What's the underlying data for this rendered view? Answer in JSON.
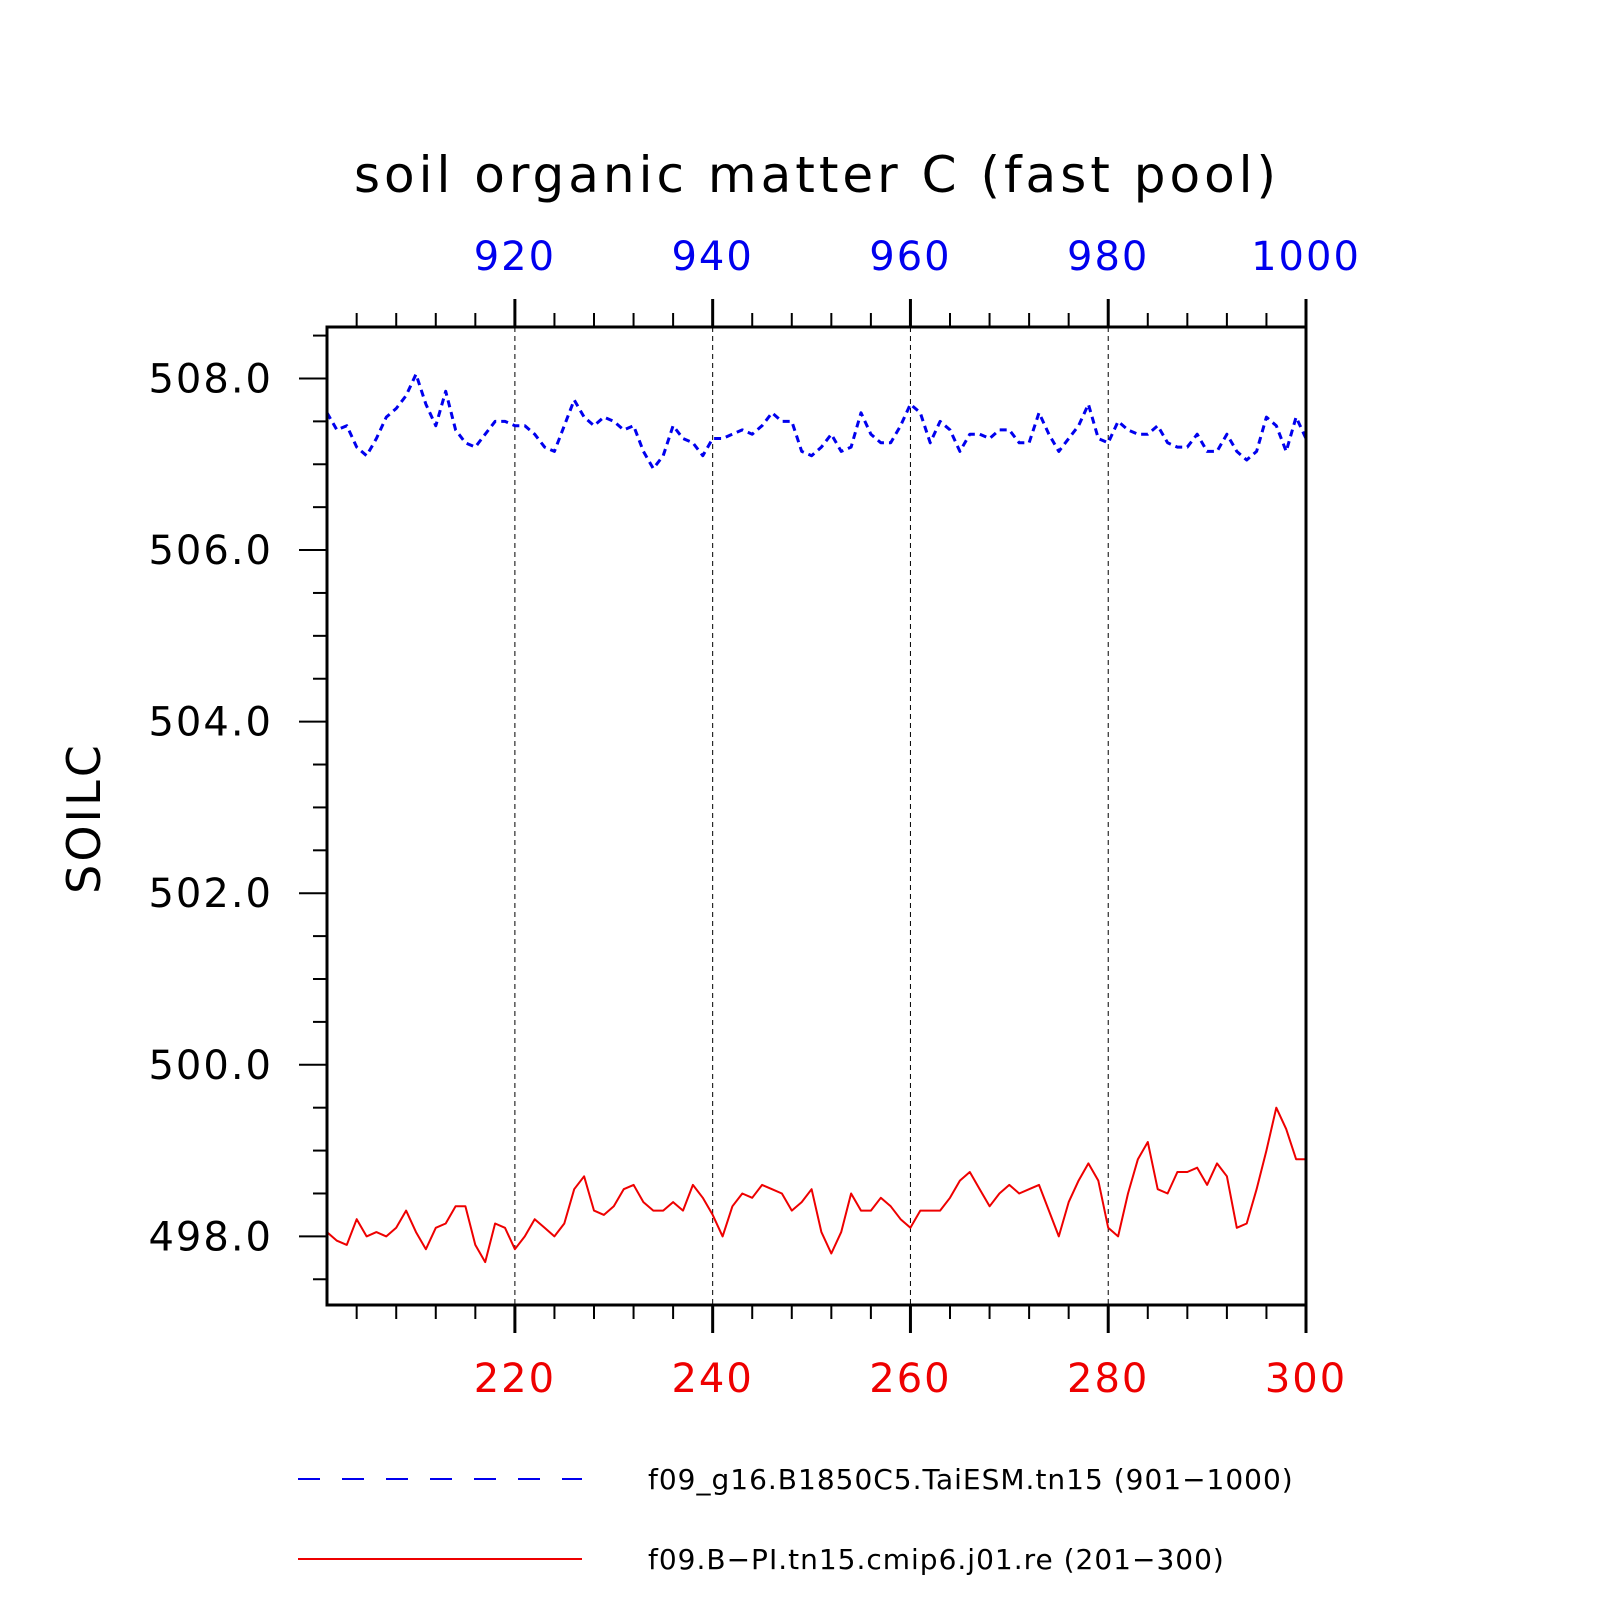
{
  "chart_data": {
    "type": "line",
    "title": "soil organic matter C (fast pool)",
    "ylabel": "SOILC",
    "xlabel": "",
    "ylim": [
      497.2,
      508.6
    ],
    "yticks": [
      498.0,
      500.0,
      502.0,
      504.0,
      506.0,
      508.0
    ],
    "ytick_labels": [
      "498.0",
      "500.0",
      "502.0",
      "504.0",
      "506.0",
      "508.0"
    ],
    "ytick_minor_step": 0.5,
    "grid": "vertical dashed at major x ticks",
    "legend_position": "bottom",
    "x_top": {
      "range": [
        901,
        1000
      ],
      "ticks": [
        920,
        940,
        960,
        980,
        1000
      ],
      "tick_labels": [
        "920",
        "940",
        "960",
        "980",
        "1000"
      ],
      "color": "#0000ee"
    },
    "x_bottom": {
      "range": [
        201,
        300
      ],
      "ticks": [
        220,
        240,
        260,
        280,
        300
      ],
      "tick_labels": [
        "220",
        "240",
        "260",
        "280",
        "300"
      ],
      "color": "#ee0000"
    },
    "series": [
      {
        "name": "f09_g16.B1850C5.TaiESM.tn15 (901−1000)",
        "axis": "top",
        "color": "#0000ee",
        "style": "dashed",
        "x_start": 901,
        "values": [
          507.6,
          507.4,
          507.45,
          507.2,
          507.1,
          507.3,
          507.55,
          507.65,
          507.8,
          508.05,
          507.7,
          507.45,
          507.85,
          507.4,
          507.25,
          507.2,
          507.35,
          507.5,
          507.5,
          507.45,
          507.45,
          507.35,
          507.2,
          507.15,
          507.45,
          507.75,
          507.55,
          507.45,
          507.55,
          507.5,
          507.4,
          507.45,
          507.15,
          506.95,
          507.1,
          507.45,
          507.3,
          507.25,
          507.1,
          507.3,
          507.3,
          507.35,
          507.4,
          507.35,
          507.45,
          507.6,
          507.5,
          507.5,
          507.15,
          507.1,
          507.2,
          507.35,
          507.15,
          507.2,
          507.6,
          507.35,
          507.25,
          507.25,
          507.45,
          507.7,
          507.6,
          507.25,
          507.5,
          507.4,
          507.15,
          507.35,
          507.35,
          507.3,
          507.4,
          507.4,
          507.25,
          507.25,
          507.6,
          507.35,
          507.15,
          507.3,
          507.45,
          507.7,
          507.3,
          507.25,
          507.5,
          507.4,
          507.35,
          507.35,
          507.45,
          507.25,
          507.2,
          507.2,
          507.35,
          507.15,
          507.15,
          507.35,
          507.15,
          507.05,
          507.15,
          507.55,
          507.45,
          507.15,
          507.55,
          507.3
        ]
      },
      {
        "name": "f09.B−PI.tn15.cmip6.j01.re (201−300)",
        "axis": "bottom",
        "color": "#ee0000",
        "style": "solid",
        "x_start": 201,
        "values": [
          498.05,
          497.95,
          497.9,
          498.2,
          498.0,
          498.05,
          498.0,
          498.1,
          498.3,
          498.05,
          497.85,
          498.1,
          498.15,
          498.35,
          498.35,
          497.9,
          497.7,
          498.15,
          498.1,
          497.85,
          498.0,
          498.2,
          498.1,
          498.0,
          498.15,
          498.55,
          498.7,
          498.3,
          498.25,
          498.35,
          498.55,
          498.6,
          498.4,
          498.3,
          498.3,
          498.4,
          498.3,
          498.6,
          498.45,
          498.25,
          498.0,
          498.35,
          498.5,
          498.45,
          498.6,
          498.55,
          498.5,
          498.3,
          498.4,
          498.55,
          498.05,
          497.8,
          498.05,
          498.5,
          498.3,
          498.3,
          498.45,
          498.35,
          498.2,
          498.1,
          498.3,
          498.3,
          498.3,
          498.45,
          498.65,
          498.75,
          498.55,
          498.35,
          498.5,
          498.6,
          498.5,
          498.55,
          498.6,
          498.3,
          498.0,
          498.4,
          498.65,
          498.85,
          498.65,
          498.1,
          498.0,
          498.5,
          498.9,
          499.1,
          498.55,
          498.5,
          498.75,
          498.75,
          498.8,
          498.6,
          498.85,
          498.7,
          498.1,
          498.15,
          498.55,
          499.0,
          499.5,
          499.25,
          498.9,
          498.9
        ]
      }
    ]
  }
}
